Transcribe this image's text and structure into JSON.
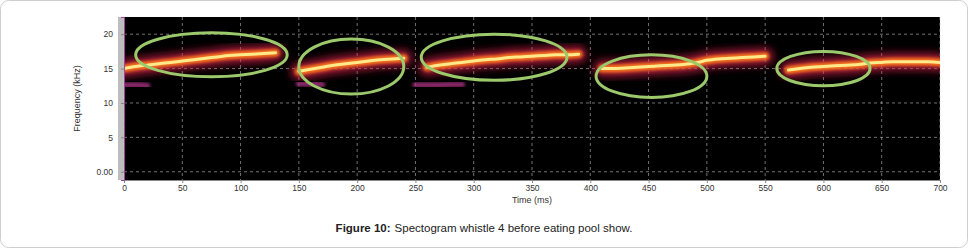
{
  "chart_data": {
    "type": "spectrogram",
    "caption": {
      "label": "Figure 10:",
      "text": "Spectogram whistle 4 before eating pool show."
    },
    "x_label": "Time (ms)",
    "y_label": "Frequency (kHz)",
    "xlim": [
      0,
      700
    ],
    "xticks": [
      0,
      50,
      100,
      150,
      200,
      250,
      300,
      350,
      400,
      450,
      500,
      550,
      600,
      650,
      700
    ],
    "ylim": [
      -1.2,
      22.5
    ],
    "yticks": [
      {
        "value": 0,
        "label": "0.00"
      },
      5,
      10,
      15,
      20
    ],
    "grid": true,
    "x": [
      0,
      10,
      20,
      30,
      40,
      50,
      60,
      70,
      80,
      90,
      100,
      110,
      120,
      130,
      140,
      150,
      160,
      170,
      180,
      190,
      200,
      210,
      220,
      230,
      240,
      250,
      260,
      270,
      280,
      290,
      300,
      310,
      320,
      330,
      340,
      350,
      360,
      370,
      380,
      390,
      400,
      410,
      420,
      430,
      440,
      450,
      460,
      470,
      480,
      490,
      500,
      510,
      520,
      530,
      540,
      550,
      560,
      570,
      580,
      590,
      600,
      610,
      620,
      630,
      640,
      650,
      660,
      670,
      680,
      690,
      700
    ],
    "series": [
      {
        "color": "#ffe98a",
        "values": [
          15.0,
          15.3,
          15.5,
          15.7,
          15.9,
          16.1,
          16.3,
          16.5,
          16.7,
          16.9,
          17.0,
          17.1,
          17.2,
          17.3,
          null,
          14.6,
          14.9,
          15.2,
          15.5,
          15.7,
          15.9,
          16.1,
          16.3,
          16.4,
          16.5,
          null,
          15.2,
          15.5,
          15.7,
          15.9,
          16.1,
          16.3,
          16.4,
          16.6,
          16.7,
          16.8,
          16.9,
          17.0,
          17.0,
          17.1,
          null,
          15.0,
          15.0,
          15.1,
          15.2,
          15.3,
          15.4,
          15.5,
          15.6,
          15.8,
          16.2,
          16.4,
          16.5,
          16.6,
          16.7,
          16.8,
          null,
          14.8,
          15.0,
          15.2,
          15.3,
          15.4,
          15.5,
          15.6,
          15.8,
          15.9,
          16.0,
          16.0,
          16.0,
          16.0,
          15.9
        ]
      },
      {
        "color": "#a0307a",
        "values": [
          12.6,
          12.6,
          12.5,
          null,
          null,
          null,
          null,
          null,
          null,
          null,
          null,
          null,
          null,
          null,
          null,
          12.8,
          12.8,
          12.7,
          null,
          null,
          null,
          null,
          null,
          null,
          null,
          12.6,
          12.6,
          12.6,
          12.7,
          12.7,
          null,
          null,
          null,
          null,
          null,
          null,
          null,
          null,
          null,
          null,
          null,
          null,
          null,
          null,
          null,
          null,
          null,
          null,
          null,
          null,
          null,
          null,
          null,
          null,
          null,
          null,
          null,
          null,
          null,
          null,
          null,
          null,
          null,
          null,
          null,
          null,
          null,
          null,
          null,
          null,
          null
        ]
      }
    ],
    "highlights": [
      {
        "x": [
          10,
          140
        ],
        "y": [
          13.8,
          20.2
        ]
      },
      {
        "x": [
          150,
          240
        ],
        "y": [
          11.3,
          19.3
        ]
      },
      {
        "x": [
          255,
          380
        ],
        "y": [
          13.3,
          20.0
        ]
      },
      {
        "x": [
          405,
          500
        ],
        "y": [
          10.8,
          17.0
        ]
      },
      {
        "x": [
          560,
          640
        ],
        "y": [
          12.5,
          17.5
        ]
      }
    ]
  }
}
